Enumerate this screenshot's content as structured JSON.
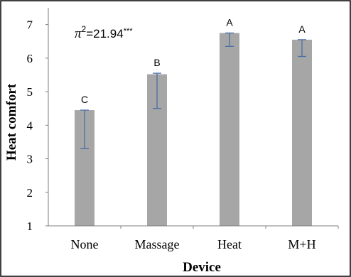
{
  "chart_data": {
    "type": "bar",
    "xlabel": "Device",
    "ylabel": "Heat comfort",
    "ylim": [
      1,
      7.5
    ],
    "yticks": [
      1,
      2,
      3,
      4,
      5,
      6,
      7
    ],
    "categories": [
      "None",
      "Massage",
      "Heat",
      "M+H"
    ],
    "values": [
      4.45,
      5.52,
      6.75,
      6.55
    ],
    "error_low": [
      3.3,
      4.5,
      6.35,
      6.05
    ],
    "error_high": [
      4.45,
      5.55,
      6.75,
      6.55
    ],
    "group_letters": [
      "C",
      "B",
      "A",
      "A"
    ],
    "annotation": {
      "symbol": "π",
      "exponent": "2",
      "value": "=21.94",
      "significance": "***"
    },
    "grid": false,
    "legend": "none",
    "colors": {
      "bar": "#a6a6a6",
      "error_bar": "#4a6fa5",
      "axis": "#7f7f7f",
      "frame": "#000000"
    }
  }
}
